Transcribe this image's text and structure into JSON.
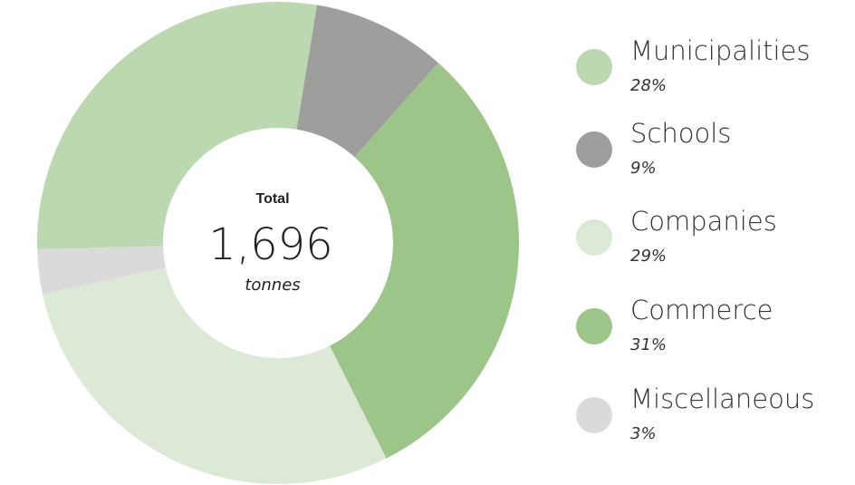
{
  "chart_data": {
    "type": "donut",
    "center_title": "Total",
    "center_value": "1,696",
    "center_unit": "tonnes",
    "categories": [
      "Municipalities",
      "Schools",
      "Commerce",
      "Companies",
      "Miscellaneous"
    ],
    "values": [
      28,
      9,
      31,
      29,
      3
    ],
    "value_labels": [
      "28%",
      "9%",
      "31%",
      "29%",
      "3%"
    ],
    "colors": [
      "#bcd8b0",
      "#9e9e9c",
      "#9dc58a",
      "#dce9d6",
      "#dadada"
    ]
  }
}
